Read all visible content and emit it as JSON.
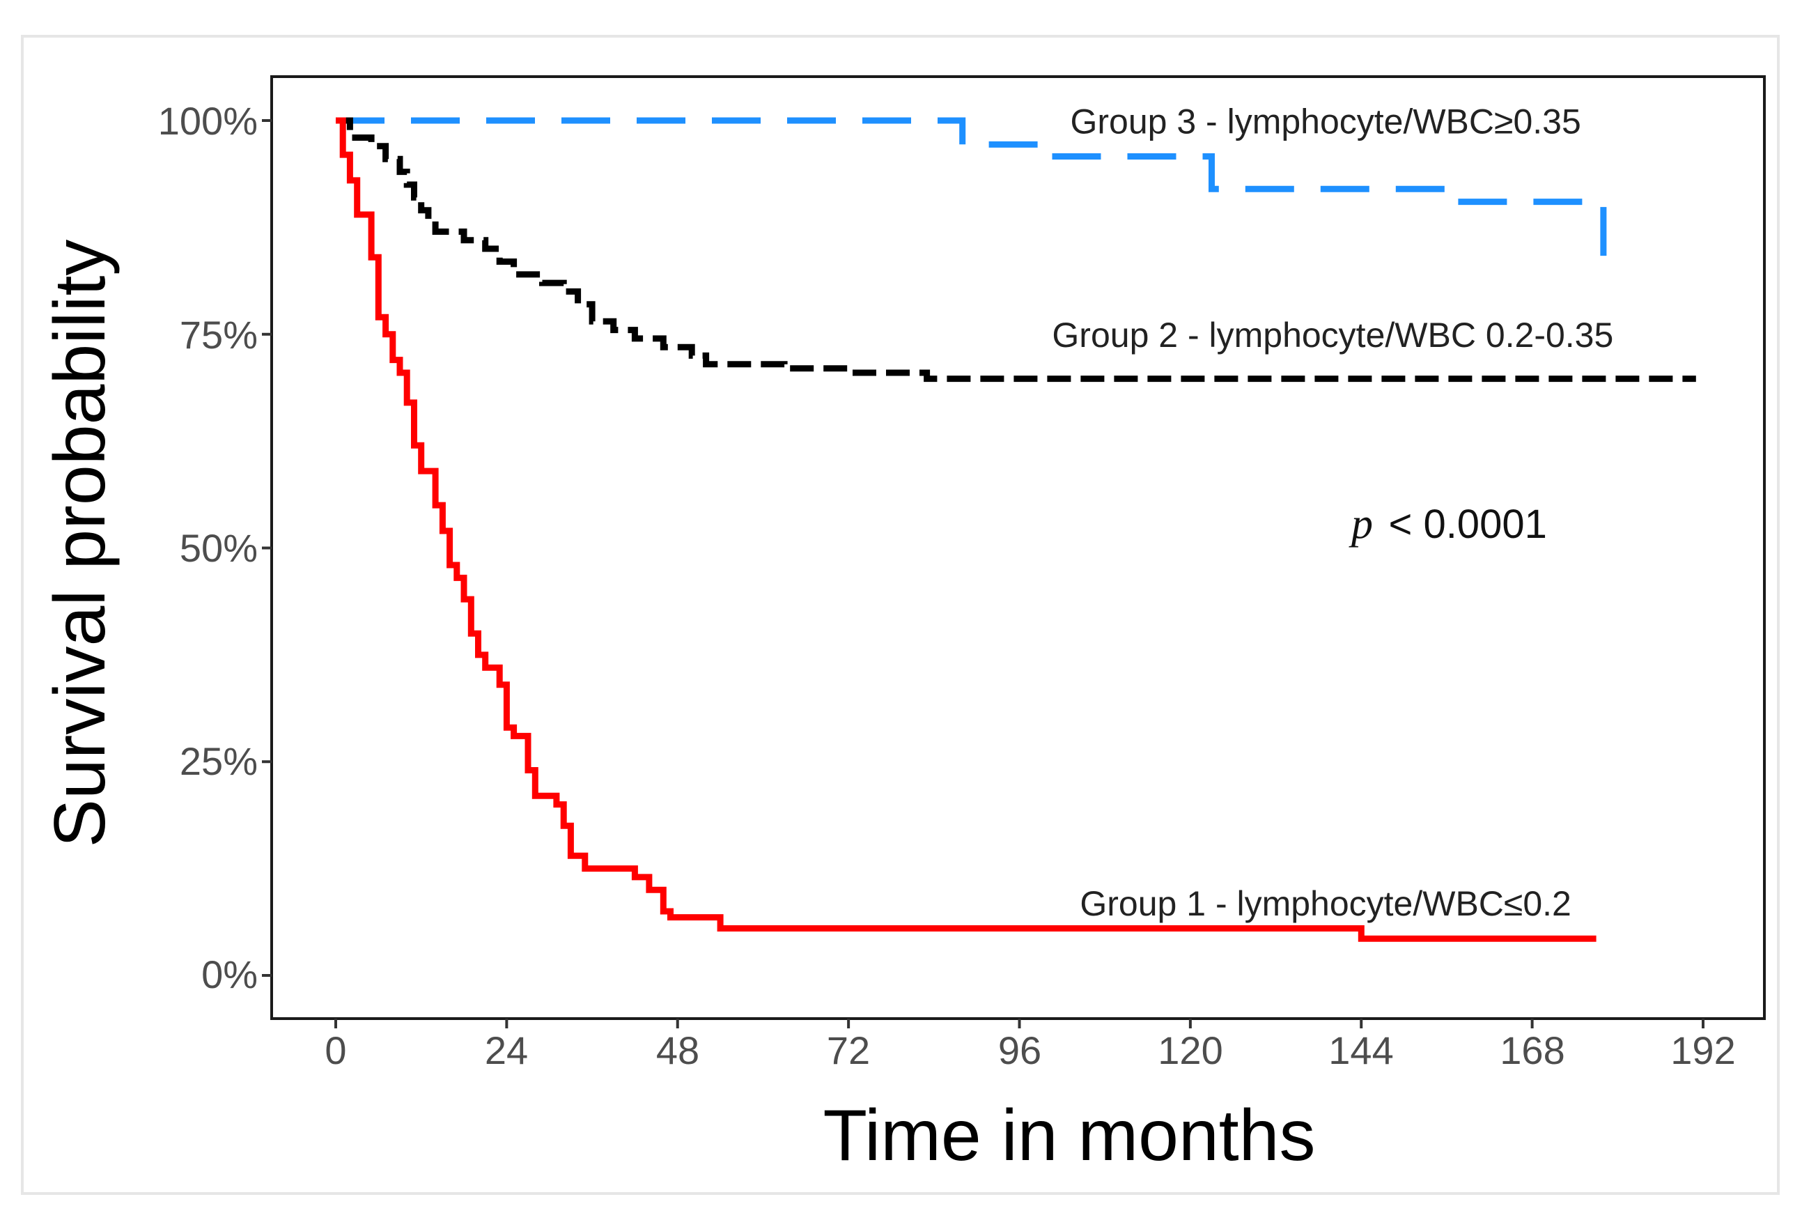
{
  "chart_data": {
    "type": "line",
    "subtype": "kaplan-meier-step",
    "title": "",
    "xlabel": "Time in months",
    "ylabel": "Survival probability",
    "xlim": [
      0,
      192
    ],
    "ylim": [
      0,
      1
    ],
    "x_ticks": [
      0,
      24,
      48,
      72,
      96,
      120,
      144,
      168,
      192
    ],
    "x_tick_labels": [
      "0",
      "24",
      "48",
      "72",
      "96",
      "120",
      "144",
      "168",
      "192"
    ],
    "y_ticks": [
      0,
      0.25,
      0.5,
      0.75,
      1.0
    ],
    "y_tick_labels": [
      "0%",
      "25%",
      "50%",
      "75%",
      "100%"
    ],
    "grid": false,
    "p_value": {
      "symbol": "p",
      "text": "< 0.0001"
    },
    "series": [
      {
        "name": "Group 3 - lymphocyte/WBC≥0.35",
        "color": "#1e90ff",
        "style": "long-dash",
        "points": [
          [
            0,
            1.0
          ],
          [
            88,
            1.0
          ],
          [
            88,
            0.972
          ],
          [
            99,
            0.972
          ],
          [
            99,
            0.958
          ],
          [
            123,
            0.958
          ],
          [
            123,
            0.92
          ],
          [
            156,
            0.92
          ],
          [
            156,
            0.905
          ],
          [
            178,
            0.905
          ],
          [
            178,
            0.835
          ],
          [
            180,
            0.835
          ]
        ]
      },
      {
        "name": "Group 2 - lymphocyte/WBC 0.2-0.35",
        "color": "#000000",
        "style": "short-dash",
        "points": [
          [
            0,
            1.0
          ],
          [
            2,
            1.0
          ],
          [
            2,
            0.98
          ],
          [
            5,
            0.98
          ],
          [
            5,
            0.97
          ],
          [
            7,
            0.97
          ],
          [
            7,
            0.955
          ],
          [
            9,
            0.955
          ],
          [
            9,
            0.94
          ],
          [
            10,
            0.94
          ],
          [
            10,
            0.925
          ],
          [
            11,
            0.925
          ],
          [
            11,
            0.91
          ],
          [
            12,
            0.91
          ],
          [
            12,
            0.895
          ],
          [
            13,
            0.895
          ],
          [
            13,
            0.885
          ],
          [
            14,
            0.885
          ],
          [
            14,
            0.87
          ],
          [
            18,
            0.87
          ],
          [
            18,
            0.86
          ],
          [
            21,
            0.86
          ],
          [
            21,
            0.85
          ],
          [
            23,
            0.85
          ],
          [
            23,
            0.835
          ],
          [
            25,
            0.835
          ],
          [
            25,
            0.82
          ],
          [
            29,
            0.82
          ],
          [
            29,
            0.81
          ],
          [
            32,
            0.81
          ],
          [
            32,
            0.8
          ],
          [
            34,
            0.8
          ],
          [
            34,
            0.785
          ],
          [
            36,
            0.785
          ],
          [
            36,
            0.765
          ],
          [
            39,
            0.765
          ],
          [
            39,
            0.755
          ],
          [
            42,
            0.755
          ],
          [
            42,
            0.745
          ],
          [
            46,
            0.745
          ],
          [
            46,
            0.735
          ],
          [
            50,
            0.735
          ],
          [
            50,
            0.725
          ],
          [
            52,
            0.725
          ],
          [
            52,
            0.715
          ],
          [
            63,
            0.715
          ],
          [
            63,
            0.71
          ],
          [
            72,
            0.71
          ],
          [
            72,
            0.705
          ],
          [
            83,
            0.705
          ],
          [
            83,
            0.698
          ],
          [
            191,
            0.698
          ]
        ]
      },
      {
        "name": "Group 1 - lymphocyte/WBC≤0.2",
        "color": "#ff0000",
        "style": "solid",
        "points": [
          [
            0,
            1.0
          ],
          [
            1,
            1.0
          ],
          [
            1,
            0.96
          ],
          [
            2,
            0.96
          ],
          [
            2,
            0.93
          ],
          [
            3,
            0.93
          ],
          [
            3,
            0.89
          ],
          [
            5,
            0.89
          ],
          [
            5,
            0.84
          ],
          [
            6,
            0.84
          ],
          [
            6,
            0.77
          ],
          [
            7,
            0.77
          ],
          [
            7,
            0.75
          ],
          [
            8,
            0.75
          ],
          [
            8,
            0.72
          ],
          [
            9,
            0.72
          ],
          [
            9,
            0.705
          ],
          [
            10,
            0.705
          ],
          [
            10,
            0.67
          ],
          [
            11,
            0.67
          ],
          [
            11,
            0.62
          ],
          [
            12,
            0.62
          ],
          [
            12,
            0.59
          ],
          [
            14,
            0.59
          ],
          [
            14,
            0.55
          ],
          [
            15,
            0.55
          ],
          [
            15,
            0.52
          ],
          [
            16,
            0.52
          ],
          [
            16,
            0.48
          ],
          [
            17,
            0.48
          ],
          [
            17,
            0.465
          ],
          [
            18,
            0.465
          ],
          [
            18,
            0.44
          ],
          [
            19,
            0.44
          ],
          [
            19,
            0.4
          ],
          [
            20,
            0.4
          ],
          [
            20,
            0.375
          ],
          [
            21,
            0.375
          ],
          [
            21,
            0.36
          ],
          [
            23,
            0.36
          ],
          [
            23,
            0.34
          ],
          [
            24,
            0.34
          ],
          [
            24,
            0.29
          ],
          [
            25,
            0.29
          ],
          [
            25,
            0.28
          ],
          [
            27,
            0.28
          ],
          [
            27,
            0.24
          ],
          [
            28,
            0.24
          ],
          [
            28,
            0.21
          ],
          [
            31,
            0.21
          ],
          [
            31,
            0.2
          ],
          [
            32,
            0.2
          ],
          [
            32,
            0.175
          ],
          [
            33,
            0.175
          ],
          [
            33,
            0.14
          ],
          [
            35,
            0.14
          ],
          [
            35,
            0.125
          ],
          [
            42,
            0.125
          ],
          [
            42,
            0.115
          ],
          [
            44,
            0.115
          ],
          [
            44,
            0.1
          ],
          [
            46,
            0.1
          ],
          [
            46,
            0.075
          ],
          [
            47,
            0.075
          ],
          [
            47,
            0.068
          ],
          [
            54,
            0.068
          ],
          [
            54,
            0.055
          ],
          [
            144,
            0.055
          ],
          [
            144,
            0.043
          ],
          [
            177,
            0.043
          ]
        ]
      }
    ],
    "annotations": [
      {
        "series": 0,
        "text": "Group 3 - lymphocyte/WBC≥0.35",
        "x": 139,
        "y": 0.985
      },
      {
        "series": 1,
        "text": "Group 2 - lymphocyte/WBC 0.2-0.35",
        "x": 140,
        "y": 0.735
      },
      {
        "series": 2,
        "text": "Group 1 - lymphocyte/WBC≤0.2",
        "x": 139,
        "y": 0.07
      }
    ]
  }
}
